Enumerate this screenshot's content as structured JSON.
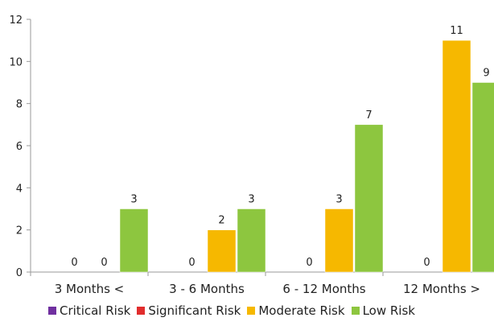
{
  "chart_data": {
    "type": "bar",
    "categories": [
      "3 Months <",
      "3 - 6 Months",
      "6 - 12 Months",
      "12 Months >"
    ],
    "series": [
      {
        "name": "Critical Risk",
        "color": "#7030A0",
        "values": [
          null,
          null,
          null,
          null
        ]
      },
      {
        "name": "Significant Risk",
        "color": "#E12D2D",
        "values": [
          0,
          0,
          0,
          0
        ]
      },
      {
        "name": "Moderate Risk",
        "color": "#F6B800",
        "values": [
          0,
          2,
          3,
          11
        ]
      },
      {
        "name": "Low Risk",
        "color": "#8DC63F",
        "values": [
          3,
          3,
          7,
          9
        ]
      }
    ],
    "yticks": [
      "0",
      "2",
      "4",
      "6",
      "8",
      "10",
      "12"
    ],
    "ylim": [
      0,
      12
    ],
    "grid": false,
    "legend_position": "bottom"
  }
}
